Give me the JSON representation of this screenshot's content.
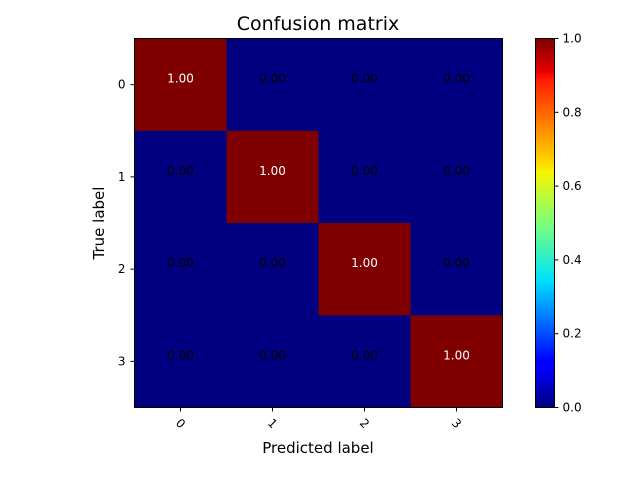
{
  "chart_data": {
    "type": "heatmap",
    "title": "Confusion matrix",
    "xlabel": "Predicted label",
    "ylabel": "True label",
    "x_tick_labels": [
      "0",
      "1",
      "2",
      "3"
    ],
    "y_tick_labels": [
      "0",
      "1",
      "2",
      "3"
    ],
    "values": [
      [
        1.0,
        0.0,
        0.0,
        0.0
      ],
      [
        0.0,
        1.0,
        0.0,
        0.0
      ],
      [
        0.0,
        0.0,
        1.0,
        0.0
      ],
      [
        0.0,
        0.0,
        0.0,
        1.0
      ]
    ],
    "cell_labels": [
      [
        "1.00",
        "0.00",
        "0.00",
        "0.00"
      ],
      [
        "0.00",
        "1.00",
        "0.00",
        "0.00"
      ],
      [
        "0.00",
        "0.00",
        "1.00",
        "0.00"
      ],
      [
        "0.00",
        "0.00",
        "0.00",
        "1.00"
      ]
    ],
    "colormap": "jet",
    "colorbar": {
      "range": [
        0.0,
        1.0
      ],
      "ticks": [
        "0.0",
        "0.2",
        "0.4",
        "0.6",
        "0.8",
        "1.0"
      ]
    },
    "grid": false
  }
}
